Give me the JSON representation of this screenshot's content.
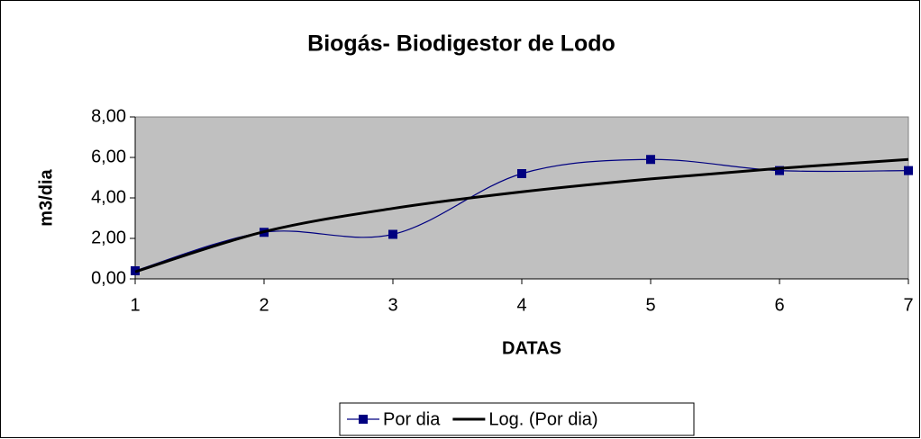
{
  "chart_data": {
    "type": "line",
    "title": "Biogás- Biodigestor de Lodo",
    "x_label": "DATAS",
    "y_label": "m3/dia",
    "x": [
      1,
      2,
      3,
      4,
      5,
      6,
      7
    ],
    "series": [
      {
        "name": "Por dia",
        "color": "#000080",
        "values": [
          0.4,
          2.3,
          2.2,
          5.2,
          5.9,
          5.35,
          5.35
        ]
      },
      {
        "name": "Log. (Por dia)",
        "color": "#000000",
        "values": [
          0.35,
          2.33,
          3.48,
          4.3,
          4.94,
          5.46,
          5.9
        ]
      }
    ],
    "xlim": [
      1,
      7
    ],
    "xticks": [
      1,
      2,
      3,
      4,
      5,
      6,
      7
    ],
    "ylim": [
      0,
      8
    ],
    "yticks": [
      {
        "value": 0,
        "label": "0,00"
      },
      {
        "value": 2,
        "label": "2,00"
      },
      {
        "value": 4,
        "label": "4,00"
      },
      {
        "value": 6,
        "label": "6,00"
      },
      {
        "value": 8,
        "label": "8,00"
      }
    ],
    "legend": "bottom"
  }
}
